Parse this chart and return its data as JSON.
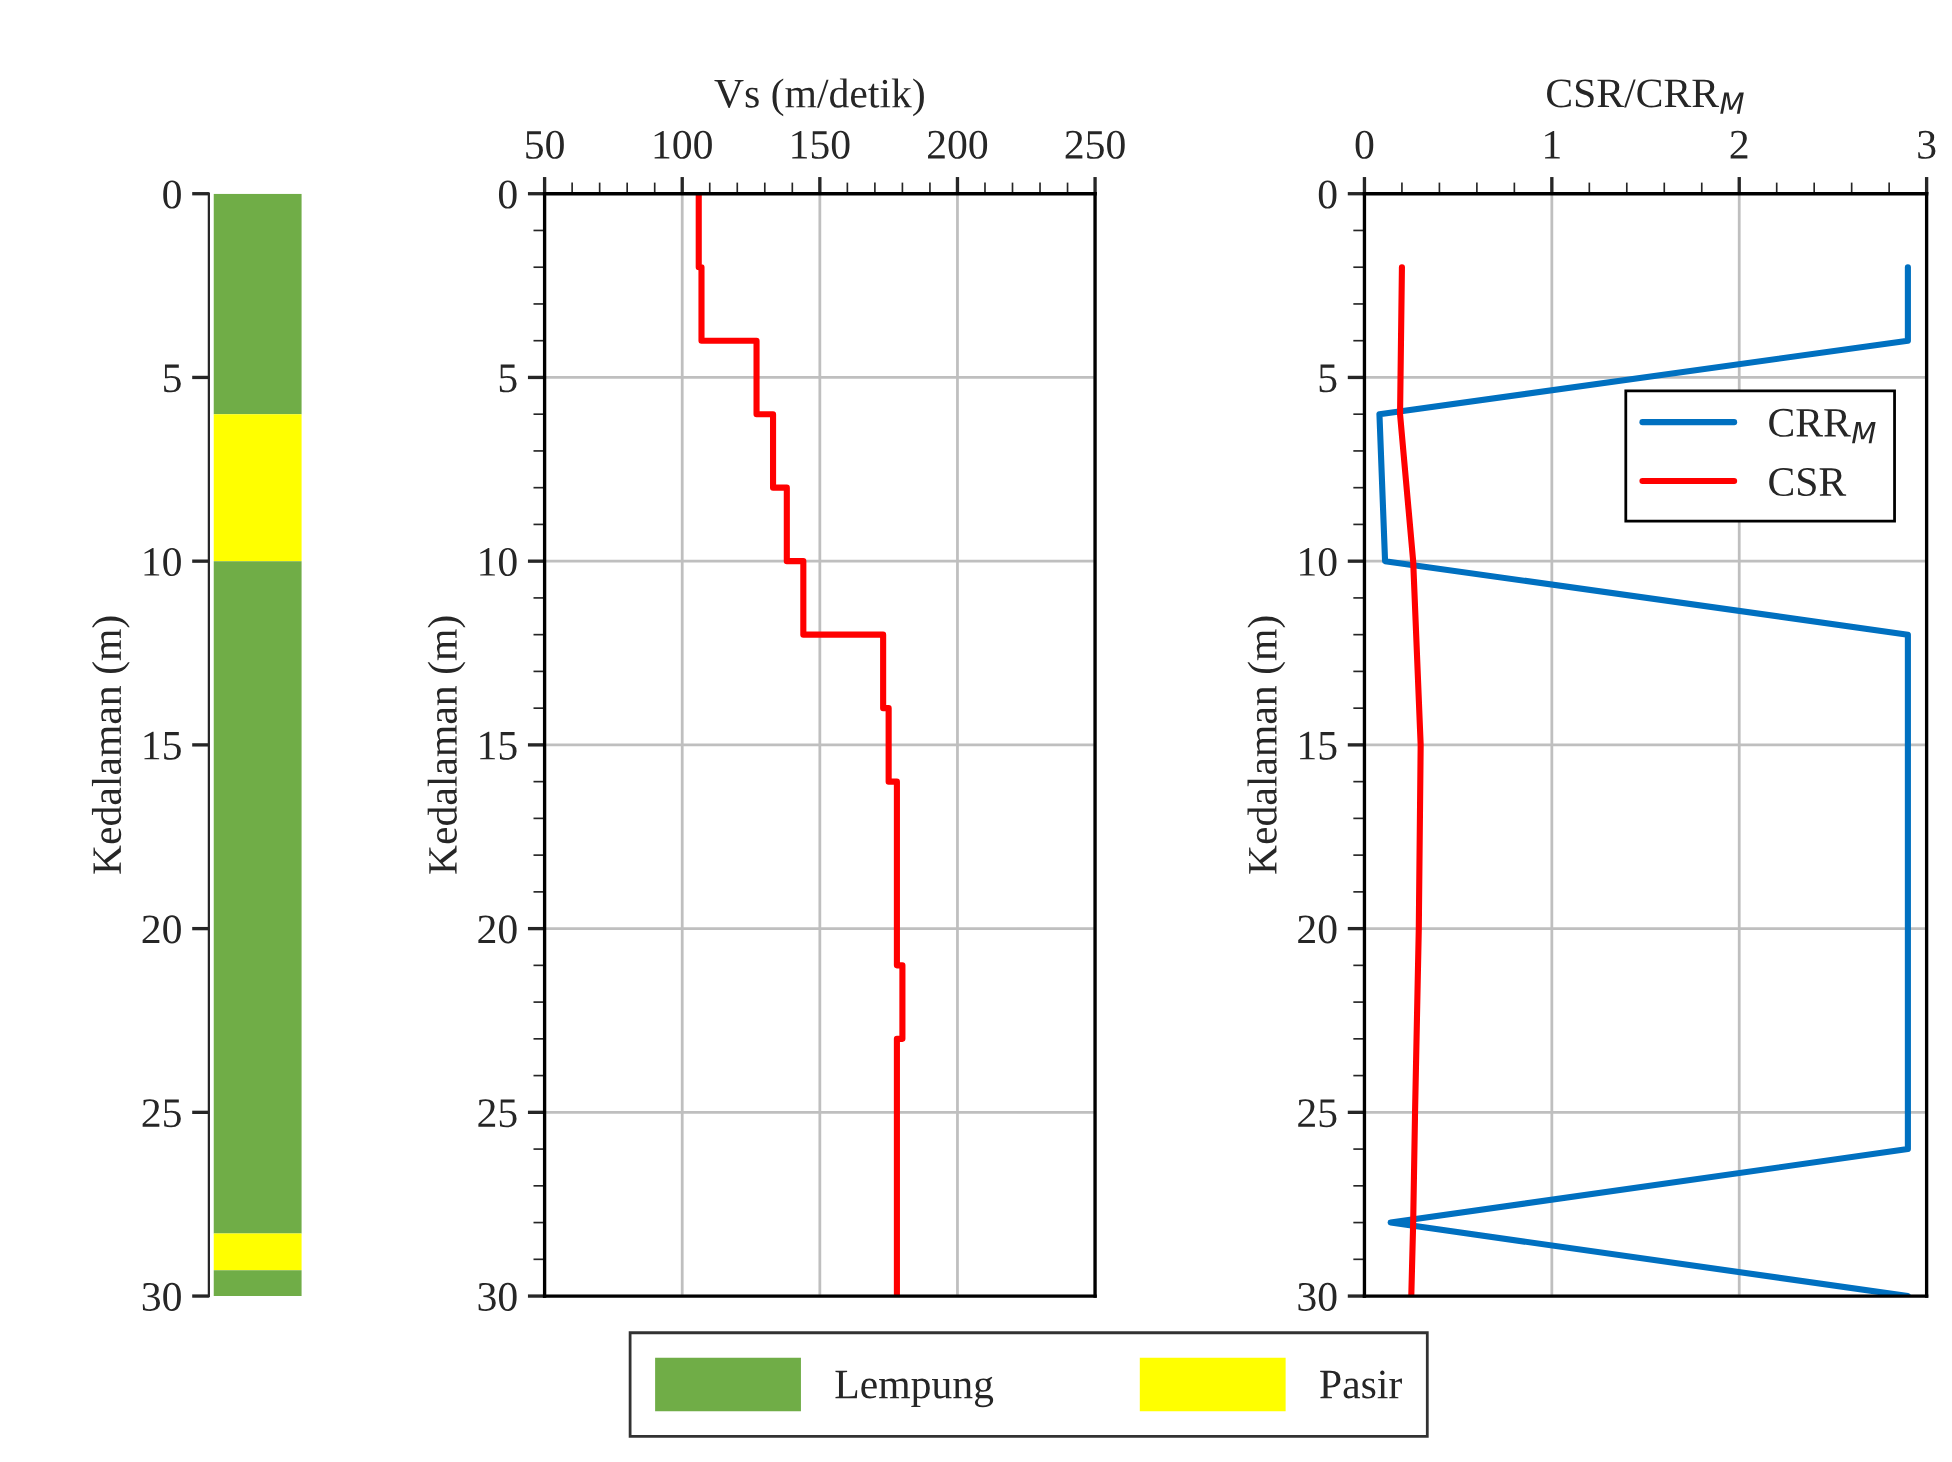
{
  "chart_data": [
    {
      "type": "bar",
      "stacked": true,
      "categories": [
        null
      ],
      "ylabel": "Kedalaman (m)",
      "ylim": [
        30,
        0
      ],
      "yticks": [
        0,
        5,
        10,
        15,
        20,
        25,
        30
      ],
      "tick_labels": "y",
      "legend": "bottom",
      "series": [
        {
          "name": "Lempung",
          "color": "#70ad47",
          "values": [
            6
          ]
        },
        {
          "name": "Pasir",
          "color": "#ffff00",
          "values": [
            4
          ]
        },
        {
          "color": "#70ad47",
          "values": [
            18.3
          ]
        },
        {
          "color": "#ffff00",
          "values": [
            1
          ]
        },
        {
          "color": "#70ad47",
          "values": [
            0.7
          ]
        }
      ]
    },
    {
      "type": "line",
      "xlabel": "Vs (m/detik)",
      "ylabel": "Kedalaman (m)",
      "xlim": [
        50,
        250
      ],
      "xticks": [
        50,
        100,
        150,
        200,
        250
      ],
      "ylim": [
        30,
        0
      ],
      "yticks": [
        0,
        5,
        10,
        15,
        20,
        25,
        30
      ],
      "grid": true,
      "series": [
        {
          "color": "#ff0000",
          "x": [
            106,
            106,
            107,
            107,
            127,
            127,
            133,
            133,
            138,
            138,
            144,
            144,
            173,
            173,
            175,
            175,
            178,
            178,
            180,
            180,
            178,
            178
          ],
          "values": [
            0,
            2,
            2,
            4,
            4,
            6,
            6,
            8,
            8,
            10,
            10,
            12,
            12,
            14,
            14,
            16,
            16,
            21,
            21,
            23,
            23,
            30
          ]
        }
      ]
    },
    {
      "type": "line",
      "xlabel": "CSR/CRR$_{M}$",
      "ylabel": "Kedalaman (m)",
      "xlim": [
        0,
        3
      ],
      "xticks": [
        0,
        1,
        2,
        3
      ],
      "ylim": [
        30,
        0
      ],
      "yticks": [
        0,
        5,
        10,
        15,
        20,
        25,
        30
      ],
      "grid": true,
      "legend": "top right",
      "series": [
        {
          "name": "CRR$_{M}$",
          "color": "#0070c0",
          "x": [
            2.9,
            2.9,
            0.08,
            0.11,
            2.9,
            2.9,
            0.14,
            2.9
          ],
          "values": [
            2,
            4,
            6,
            10,
            12,
            26,
            28,
            30
          ]
        },
        {
          "name": "CSR",
          "color": "#ff0000",
          "x": [
            0.2,
            0.19,
            0.26,
            0.3,
            0.29,
            0.27,
            0.26,
            0.25
          ],
          "values": [
            2,
            6,
            10,
            15,
            20,
            25,
            28,
            30
          ]
        }
      ]
    }
  ]
}
